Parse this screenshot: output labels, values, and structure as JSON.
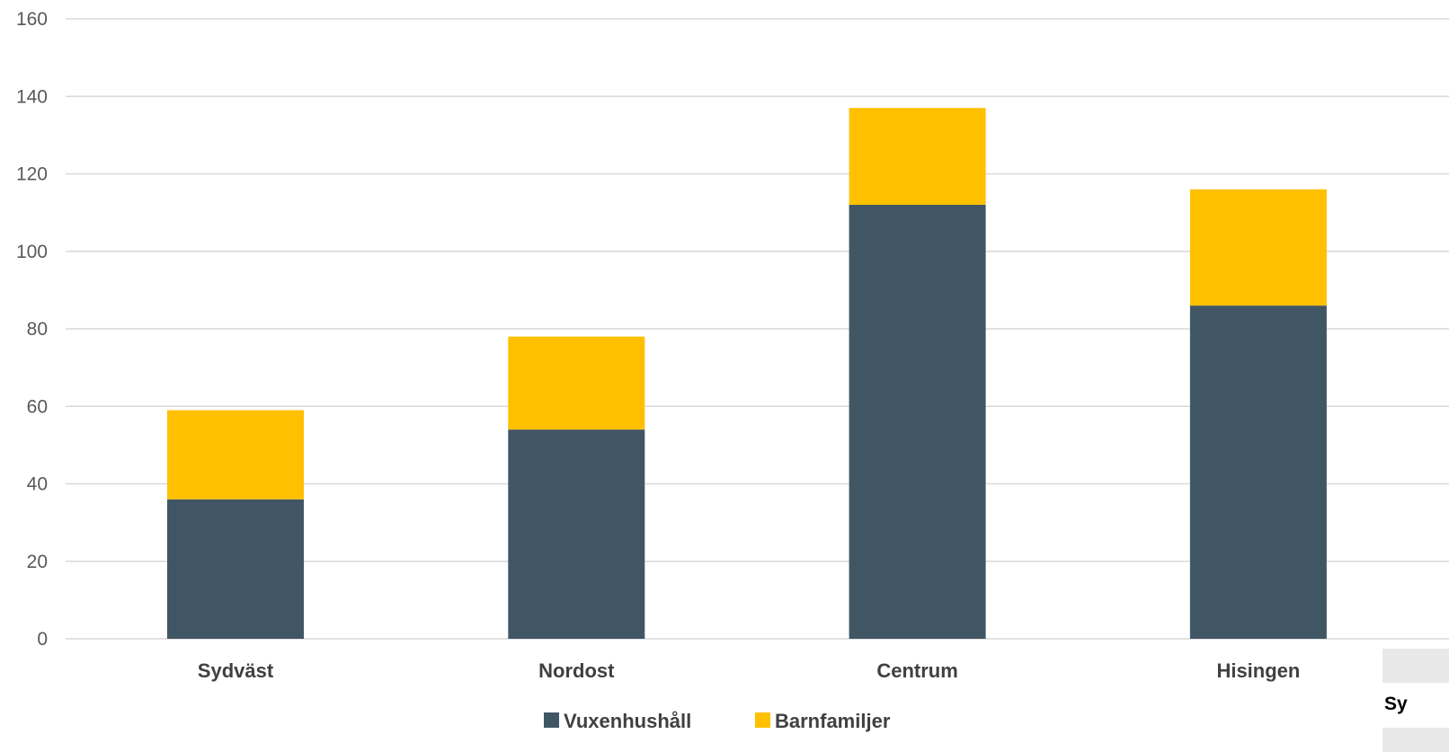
{
  "chart_data": {
    "type": "bar",
    "stacked": true,
    "categories": [
      "Sydväst",
      "Nordost",
      "Centrum",
      "Hisingen"
    ],
    "series": [
      {
        "name": "Vuxenhushåll",
        "values": [
          36,
          54,
          112,
          86
        ],
        "color": "#415665"
      },
      {
        "name": "Barnfamiljer",
        "values": [
          23,
          24,
          25,
          30
        ],
        "color": "#FFC000"
      }
    ],
    "yticks": [
      0,
      20,
      40,
      60,
      80,
      100,
      120,
      140,
      160
    ],
    "ylim": [
      0,
      160
    ],
    "grid": true,
    "legend_position": "bottom",
    "title": "",
    "xlabel": "",
    "ylabel": ""
  },
  "table_fragment": {
    "row_label": "Sy"
  }
}
